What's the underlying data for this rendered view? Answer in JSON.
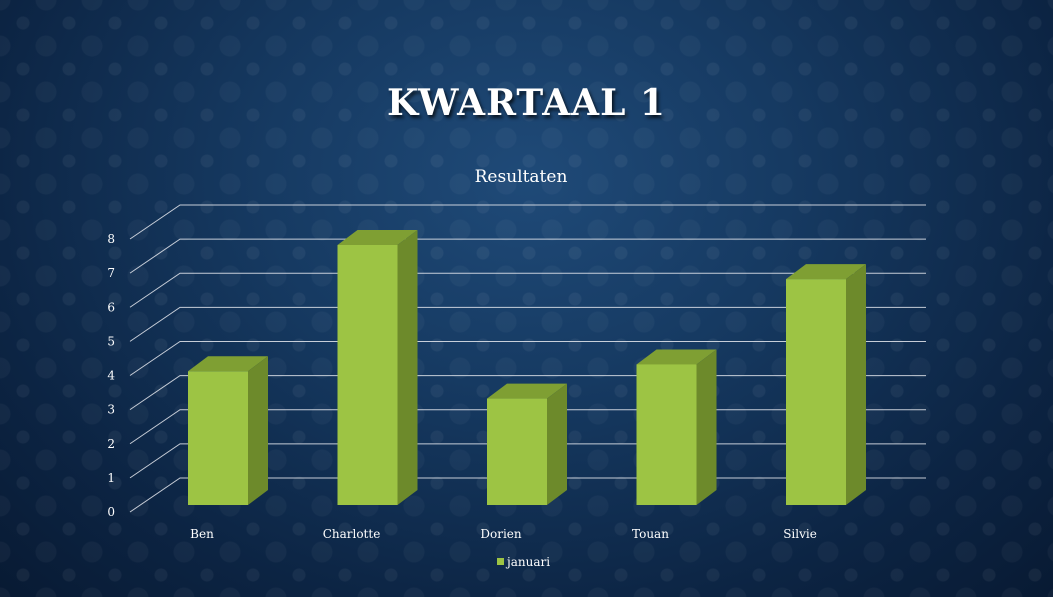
{
  "slide": {
    "title": "KWARTAAL 1"
  },
  "chart_data": {
    "type": "bar",
    "title": "Resultaten",
    "categories": [
      "Ben",
      "Charlotte",
      "Dorien",
      "Touan",
      "Silvie"
    ],
    "series": [
      {
        "name": "januari",
        "values": [
          4.3,
          8.0,
          3.5,
          4.5,
          7.0
        ]
      }
    ],
    "ylim": [
      0,
      8
    ],
    "yticks": [
      0,
      1,
      2,
      3,
      4,
      5,
      6,
      7,
      8
    ],
    "grid": true,
    "legend": "bottom",
    "colors": {
      "front": "#9dc444",
      "side": "#6d8a2b",
      "top": "#7f9f33",
      "grid": "#e6e9ee"
    }
  }
}
